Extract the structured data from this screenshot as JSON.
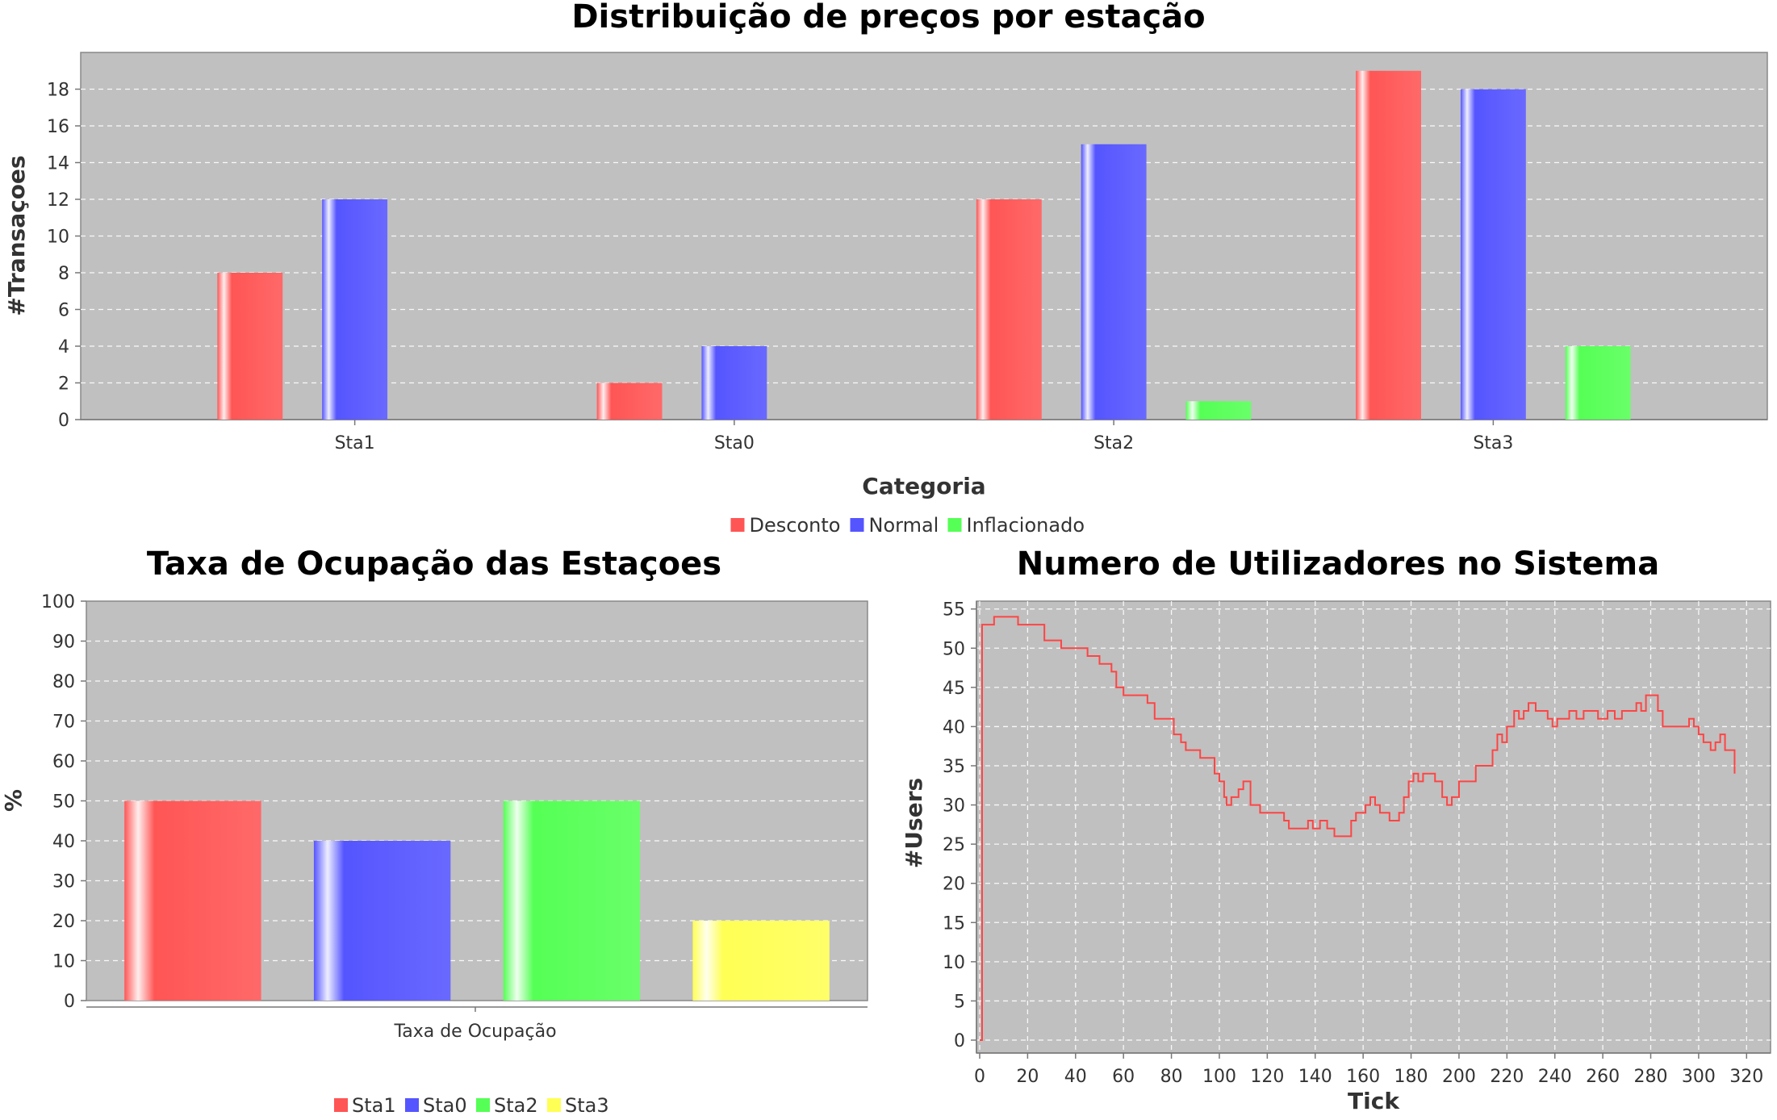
{
  "chart_data": [
    {
      "type": "bar",
      "title": "Distribuição de preços por estação",
      "xlabel": "Categoria",
      "ylabel": "#Transaçoes",
      "ylim": [
        0,
        20
      ],
      "yticks": [
        0,
        2,
        4,
        6,
        8,
        10,
        12,
        14,
        16,
        18
      ],
      "categories": [
        "Sta1",
        "Sta0",
        "Sta2",
        "Sta3"
      ],
      "legend_position": "bottom",
      "grid": true,
      "series": [
        {
          "name": "Desconto",
          "color": "#ff5555",
          "values": [
            8,
            2,
            12,
            19
          ]
        },
        {
          "name": "Normal",
          "color": "#5555ff",
          "values": [
            12,
            4,
            15,
            18
          ]
        },
        {
          "name": "Inflacionado",
          "color": "#55ff55",
          "values": [
            0,
            0,
            1,
            4
          ]
        }
      ]
    },
    {
      "type": "bar",
      "title": "Taxa de Ocupação das Estaçoes",
      "xlabel": "",
      "ylabel": "%",
      "ylim": [
        0,
        100
      ],
      "yticks": [
        0,
        10,
        20,
        30,
        40,
        50,
        60,
        70,
        80,
        90,
        100
      ],
      "categories": [
        "Taxa de Ocupação"
      ],
      "legend_position": "bottom",
      "grid": true,
      "series": [
        {
          "name": "Sta1",
          "color": "#ff5555",
          "values": [
            50
          ]
        },
        {
          "name": "Sta0",
          "color": "#5555ff",
          "values": [
            40
          ]
        },
        {
          "name": "Sta2",
          "color": "#55ff55",
          "values": [
            50
          ]
        },
        {
          "name": "Sta3",
          "color": "#ffff55",
          "values": [
            20
          ]
        }
      ]
    },
    {
      "type": "line",
      "title": "Numero de Utilizadores no Sistema",
      "xlabel": "Tick",
      "ylabel": "#Users",
      "xlim": [
        0,
        330
      ],
      "ylim": [
        0,
        56
      ],
      "xticks": [
        0,
        20,
        40,
        60,
        80,
        100,
        120,
        140,
        160,
        180,
        200,
        220,
        240,
        260,
        280,
        300,
        320
      ],
      "yticks": [
        0,
        5,
        10,
        15,
        20,
        25,
        30,
        35,
        40,
        45,
        50,
        55
      ],
      "grid": true,
      "series": [
        {
          "color": "#ff4444",
          "x": [
            0,
            1,
            4,
            6,
            14,
            16,
            25,
            27,
            32,
            34,
            44,
            45,
            48,
            50,
            53,
            55,
            57,
            60,
            66,
            70,
            72,
            73,
            77,
            81,
            84,
            86,
            89,
            92,
            95,
            98,
            100,
            102,
            103,
            105,
            107,
            108,
            110,
            113,
            117,
            123,
            127,
            129,
            134,
            137,
            139,
            142,
            145,
            148,
            151,
            155,
            157,
            159,
            161,
            163,
            165,
            167,
            169,
            171,
            173,
            175,
            177,
            179,
            181,
            183,
            185,
            188,
            190,
            191,
            193,
            195,
            197,
            200,
            203,
            206,
            207,
            210,
            214,
            216,
            218,
            220,
            221,
            223,
            225,
            227,
            229,
            232,
            235,
            237,
            239,
            241,
            243,
            246,
            249,
            252,
            255,
            258,
            262,
            265,
            268,
            272,
            274,
            276,
            278,
            280,
            283,
            285,
            287,
            290,
            293,
            296,
            298,
            300,
            302,
            305,
            307,
            309,
            311,
            313,
            315
          ],
          "y": [
            0,
            53,
            53,
            54,
            54,
            53,
            53,
            51,
            51,
            50,
            50,
            49,
            49,
            48,
            48,
            47,
            45,
            44,
            44,
            43,
            43,
            41,
            41,
            39,
            38,
            37,
            37,
            36,
            36,
            34,
            33,
            31,
            30,
            31,
            31,
            32,
            33,
            30,
            29,
            29,
            28,
            27,
            27,
            28,
            27,
            28,
            27,
            26,
            26,
            28,
            29,
            29,
            30,
            31,
            30,
            29,
            29,
            28,
            28,
            29,
            31,
            33,
            34,
            33,
            34,
            34,
            33,
            33,
            31,
            30,
            31,
            33,
            33,
            33,
            35,
            35,
            37,
            39,
            38,
            40,
            40,
            42,
            41,
            42,
            43,
            42,
            42,
            41,
            40,
            41,
            41,
            42,
            41,
            42,
            42,
            41,
            42,
            41,
            42,
            42,
            43,
            42,
            44,
            44,
            42,
            40,
            40,
            40,
            40,
            41,
            40,
            39,
            38,
            37,
            38,
            39,
            37,
            37,
            34
          ]
        }
      ]
    }
  ]
}
